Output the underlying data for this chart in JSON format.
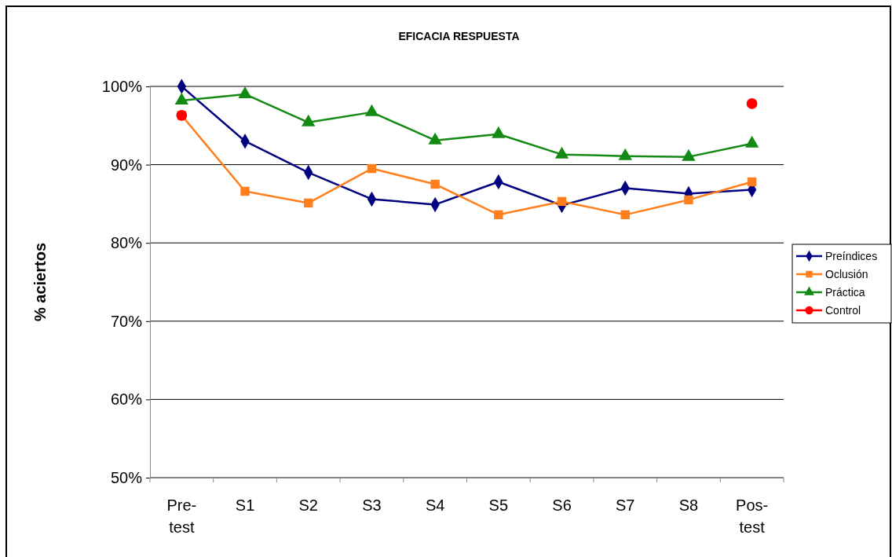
{
  "chart_data": {
    "type": "line",
    "title": "EFICACIA RESPUESTA",
    "ylabel": "% aciertos",
    "categories": [
      "Pre-test",
      "S1",
      "S2",
      "S3",
      "S4",
      "S5",
      "S6",
      "S7",
      "S8",
      "Pos-test"
    ],
    "ylim": [
      50,
      100
    ],
    "yticks": [
      {
        "value": 50,
        "label": "50%"
      },
      {
        "value": 60,
        "label": "60%"
      },
      {
        "value": 70,
        "label": "70%"
      },
      {
        "value": 80,
        "label": "80%"
      },
      {
        "value": 90,
        "label": "90%"
      },
      {
        "value": 100,
        "label": "100%"
      }
    ],
    "grid": "y",
    "legend": "right",
    "series": [
      {
        "name": "Preíndices",
        "color": "#000080",
        "marker": "diamond",
        "values": [
          100,
          93.0,
          89.0,
          85.6,
          84.9,
          87.8,
          84.8,
          87.0,
          86.3,
          86.8
        ]
      },
      {
        "name": "Oclusión",
        "color": "#ff7f1e",
        "marker": "square",
        "values": [
          96.3,
          86.6,
          85.1,
          89.5,
          87.5,
          83.6,
          85.3,
          83.6,
          85.5,
          87.8
        ]
      },
      {
        "name": "Práctica",
        "color": "#138a13",
        "marker": "triangle",
        "values": [
          98.2,
          99.0,
          95.4,
          96.7,
          93.1,
          93.9,
          91.3,
          91.1,
          91.0,
          92.7
        ]
      },
      {
        "name": "Control",
        "type": "scatter",
        "color": "#ff0000",
        "marker": "circle",
        "values": [
          96.3,
          null,
          null,
          null,
          null,
          null,
          null,
          null,
          null,
          97.8
        ]
      }
    ]
  }
}
